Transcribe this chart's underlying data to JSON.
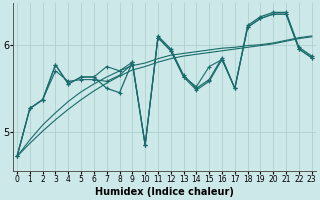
{
  "xlabel": "Humidex (Indice chaleur)",
  "bg_color": "#cce8e8",
  "grid_color": "#aacccc",
  "line_color": "#1a6b6b",
  "x_values": [
    0,
    1,
    2,
    3,
    4,
    5,
    6,
    7,
    8,
    9,
    10,
    11,
    12,
    13,
    14,
    15,
    16,
    17,
    18,
    19,
    20,
    21,
    22,
    23
  ],
  "main_y": [
    4.72,
    5.27,
    5.37,
    5.77,
    5.55,
    5.63,
    5.63,
    5.5,
    5.45,
    5.8,
    4.85,
    6.1,
    5.95,
    5.65,
    5.5,
    5.6,
    5.85,
    5.5,
    6.22,
    6.32,
    6.37,
    6.37,
    5.97,
    5.87
  ],
  "extra1_y": [
    4.72,
    5.27,
    5.37,
    5.77,
    5.55,
    5.63,
    5.63,
    5.75,
    5.7,
    5.8,
    4.85,
    6.08,
    5.93,
    5.63,
    5.52,
    5.75,
    5.83,
    5.5,
    6.2,
    6.3,
    6.35,
    6.35,
    5.95,
    5.85
  ],
  "extra2_y": [
    4.72,
    5.27,
    5.37,
    5.7,
    5.58,
    5.6,
    5.6,
    5.58,
    5.65,
    5.78,
    4.85,
    6.08,
    5.93,
    5.63,
    5.48,
    5.58,
    5.83,
    5.5,
    6.2,
    6.3,
    6.35,
    6.35,
    5.95,
    5.85
  ],
  "trend1_y": [
    4.72,
    4.87,
    5.01,
    5.14,
    5.26,
    5.37,
    5.47,
    5.56,
    5.64,
    5.71,
    5.75,
    5.8,
    5.84,
    5.87,
    5.89,
    5.91,
    5.93,
    5.95,
    5.97,
    5.99,
    6.01,
    6.04,
    6.07,
    6.09
  ],
  "trend2_y": [
    4.72,
    4.91,
    5.08,
    5.22,
    5.35,
    5.46,
    5.55,
    5.63,
    5.7,
    5.76,
    5.79,
    5.84,
    5.88,
    5.9,
    5.92,
    5.94,
    5.96,
    5.97,
    5.99,
    6.0,
    6.02,
    6.05,
    6.08,
    6.1
  ],
  "ylim": [
    4.55,
    6.48
  ],
  "yticks": [
    5,
    6
  ],
  "xticks": [
    0,
    1,
    2,
    3,
    4,
    5,
    6,
    7,
    8,
    9,
    10,
    11,
    12,
    13,
    14,
    15,
    16,
    17,
    18,
    19,
    20,
    21,
    22,
    23
  ]
}
